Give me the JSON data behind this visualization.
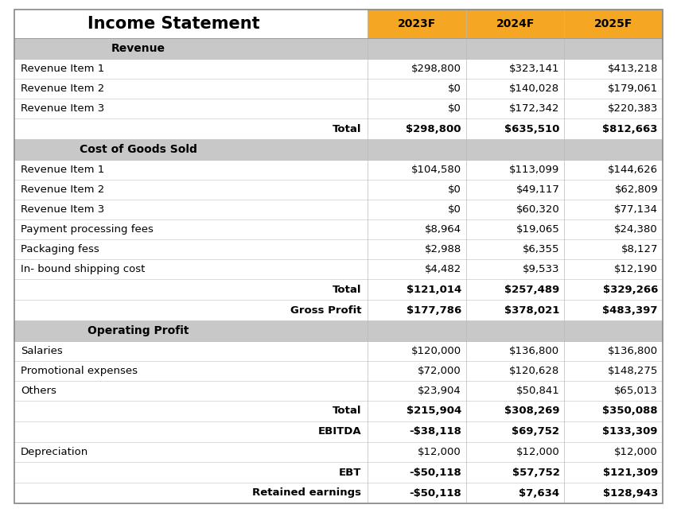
{
  "title": "Income Statement",
  "header_years": [
    "2023F",
    "2024F",
    "2025F"
  ],
  "header_color": "#F5A623",
  "section_bg_color": "#C8C8C8",
  "white_bg": "#FFFFFF",
  "rows": [
    {
      "label": "Revenue",
      "vals": [
        "",
        "",
        ""
      ],
      "type": "section"
    },
    {
      "label": "Revenue Item 1",
      "vals": [
        "$298,800",
        "$323,141",
        "$413,218"
      ],
      "type": "data"
    },
    {
      "label": "Revenue Item 2",
      "vals": [
        "$0",
        "$140,028",
        "$179,061"
      ],
      "type": "data"
    },
    {
      "label": "Revenue Item 3",
      "vals": [
        "$0",
        "$172,342",
        "$220,383"
      ],
      "type": "data"
    },
    {
      "label": "Total",
      "vals": [
        "$298,800",
        "$635,510",
        "$812,663"
      ],
      "type": "total"
    },
    {
      "label": "Cost of Goods Sold",
      "vals": [
        "",
        "",
        ""
      ],
      "type": "section"
    },
    {
      "label": "Revenue Item 1",
      "vals": [
        "$104,580",
        "$113,099",
        "$144,626"
      ],
      "type": "data"
    },
    {
      "label": "Revenue Item 2",
      "vals": [
        "$0",
        "$49,117",
        "$62,809"
      ],
      "type": "data"
    },
    {
      "label": "Revenue Item 3",
      "vals": [
        "$0",
        "$60,320",
        "$77,134"
      ],
      "type": "data"
    },
    {
      "label": "Payment processing fees",
      "vals": [
        "$8,964",
        "$19,065",
        "$24,380"
      ],
      "type": "data"
    },
    {
      "label": "Packaging fess",
      "vals": [
        "$2,988",
        "$6,355",
        "$8,127"
      ],
      "type": "data"
    },
    {
      "label": "In- bound shipping cost",
      "vals": [
        "$4,482",
        "$9,533",
        "$12,190"
      ],
      "type": "data"
    },
    {
      "label": "Total",
      "vals": [
        "$121,014",
        "$257,489",
        "$329,266"
      ],
      "type": "total"
    },
    {
      "label": "Gross Profit",
      "vals": [
        "$177,786",
        "$378,021",
        "$483,397"
      ],
      "type": "total"
    },
    {
      "label": "Operating Profit",
      "vals": [
        "",
        "",
        ""
      ],
      "type": "section"
    },
    {
      "label": "Salaries",
      "vals": [
        "$120,000",
        "$136,800",
        "$136,800"
      ],
      "type": "data"
    },
    {
      "label": "Promotional expenses",
      "vals": [
        "$72,000",
        "$120,628",
        "$148,275"
      ],
      "type": "data"
    },
    {
      "label": "Others",
      "vals": [
        "$23,904",
        "$50,841",
        "$65,013"
      ],
      "type": "data"
    },
    {
      "label": "Total",
      "vals": [
        "$215,904",
        "$308,269",
        "$350,088"
      ],
      "type": "total"
    },
    {
      "label": "EBITDA",
      "vals": [
        "-$38,118",
        "$69,752",
        "$133,309"
      ],
      "type": "total"
    },
    {
      "label": "Depreciation",
      "vals": [
        "$12,000",
        "$12,000",
        "$12,000"
      ],
      "type": "data"
    },
    {
      "label": "EBT",
      "vals": [
        "-$50,118",
        "$57,752",
        "$121,309"
      ],
      "type": "total"
    },
    {
      "label": "Retained earnings",
      "vals": [
        "-$50,118",
        "$7,634",
        "$128,943"
      ],
      "type": "total"
    }
  ],
  "fig_width": 8.51,
  "fig_height": 6.64,
  "dpi": 100
}
